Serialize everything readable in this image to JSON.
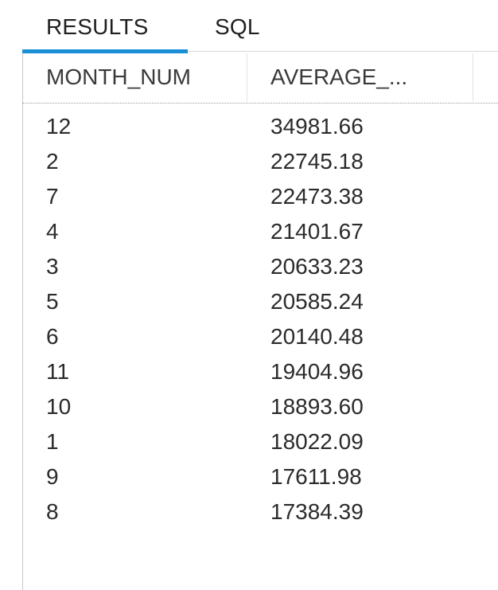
{
  "tabs": [
    {
      "label": "RESULTS",
      "active": true
    },
    {
      "label": "SQL",
      "active": false
    }
  ],
  "colors": {
    "accent": "#1a8fd6",
    "text": "#2b2b2b",
    "border": "#c8c8c8"
  },
  "table": {
    "columns": [
      "MONTH_NUM",
      "AVERAGE_..."
    ],
    "rows": [
      [
        "12",
        "34981.66"
      ],
      [
        "2",
        "22745.18"
      ],
      [
        "7",
        "22473.38"
      ],
      [
        "4",
        "21401.67"
      ],
      [
        "3",
        "20633.23"
      ],
      [
        "5",
        "20585.24"
      ],
      [
        "6",
        "20140.48"
      ],
      [
        "11",
        "19404.96"
      ],
      [
        "10",
        "18893.60"
      ],
      [
        "1",
        "18022.09"
      ],
      [
        "9",
        "17611.98"
      ],
      [
        "8",
        "17384.39"
      ]
    ]
  }
}
